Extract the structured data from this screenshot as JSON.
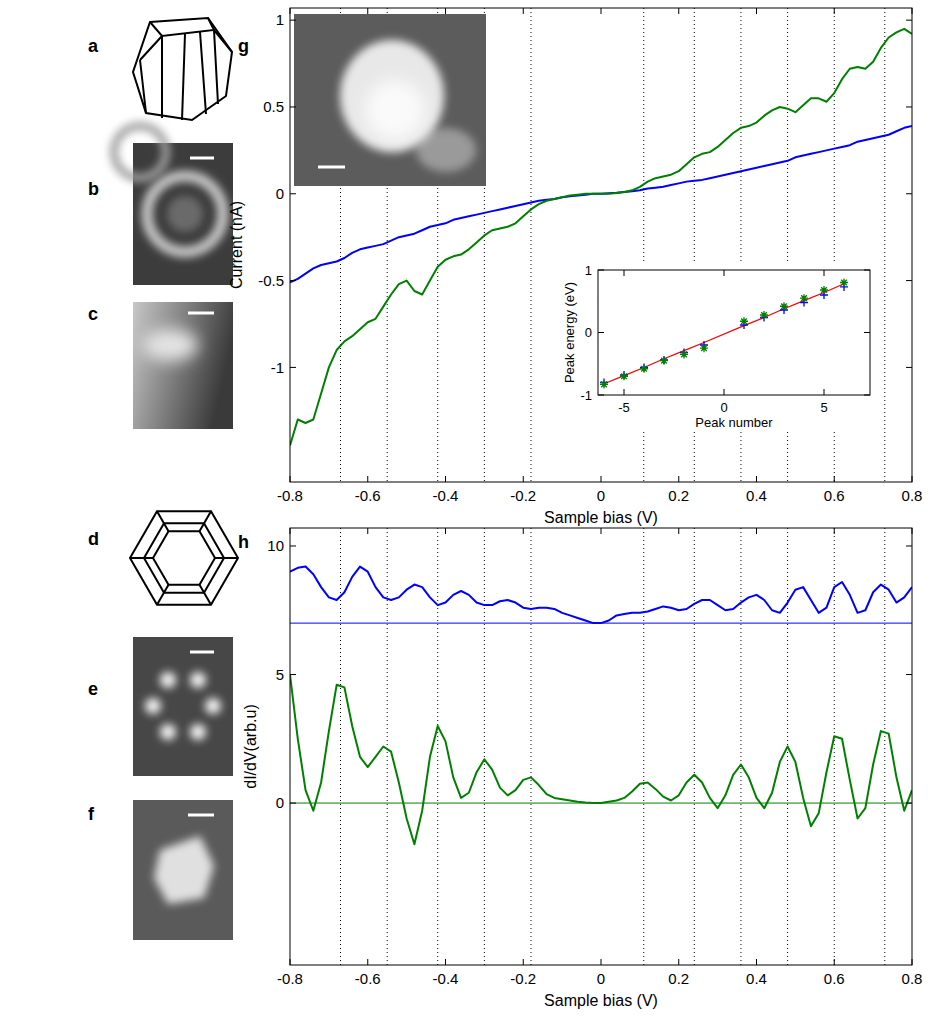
{
  "panel_labels": [
    "a",
    "b",
    "c",
    "d",
    "e",
    "f",
    "g",
    "h"
  ],
  "chart_data": [
    {
      "type": "line",
      "x_label": "Sample bias (V)",
      "y_label": "Current (nA)",
      "xlim": [
        -0.8,
        0.8
      ],
      "ylim": [
        -1.66,
        1.07
      ],
      "xticks": [
        -0.8,
        -0.6,
        -0.4,
        -0.2,
        0,
        0.2,
        0.4,
        0.6,
        0.8
      ],
      "yticks": [
        -1,
        -0.5,
        0,
        0.5,
        1
      ],
      "vlines": [
        -0.67,
        -0.55,
        -0.42,
        -0.3,
        -0.18,
        0.11,
        0.24,
        0.36,
        0.48,
        0.6,
        0.73
      ],
      "x": [
        -0.8,
        -0.78,
        -0.76,
        -0.74,
        -0.72,
        -0.7,
        -0.68,
        -0.66,
        -0.64,
        -0.62,
        -0.6,
        -0.58,
        -0.56,
        -0.54,
        -0.52,
        -0.5,
        -0.48,
        -0.46,
        -0.44,
        -0.42,
        -0.4,
        -0.38,
        -0.36,
        -0.34,
        -0.32,
        -0.3,
        -0.28,
        -0.26,
        -0.24,
        -0.22,
        -0.2,
        -0.18,
        -0.16,
        -0.14,
        -0.12,
        -0.1,
        -0.08,
        -0.06,
        -0.04,
        -0.02,
        0,
        0.02,
        0.04,
        0.06,
        0.08,
        0.1,
        0.12,
        0.14,
        0.16,
        0.18,
        0.2,
        0.22,
        0.24,
        0.26,
        0.28,
        0.3,
        0.32,
        0.34,
        0.36,
        0.38,
        0.4,
        0.42,
        0.44,
        0.46,
        0.48,
        0.5,
        0.52,
        0.54,
        0.56,
        0.58,
        0.6,
        0.62,
        0.64,
        0.66,
        0.68,
        0.7,
        0.72,
        0.74,
        0.76,
        0.78,
        0.8
      ],
      "series": [
        {
          "color": "#0000ff",
          "values": [
            -0.51,
            -0.49,
            -0.46,
            -0.43,
            -0.41,
            -0.4,
            -0.39,
            -0.37,
            -0.34,
            -0.32,
            -0.31,
            -0.3,
            -0.29,
            -0.27,
            -0.25,
            -0.24,
            -0.23,
            -0.21,
            -0.19,
            -0.18,
            -0.17,
            -0.15,
            -0.14,
            -0.13,
            -0.12,
            -0.11,
            -0.1,
            -0.09,
            -0.08,
            -0.07,
            -0.06,
            -0.05,
            -0.04,
            -0.035,
            -0.03,
            -0.02,
            -0.015,
            -0.01,
            -0.005,
            0,
            0,
            0.003,
            0.006,
            0.01,
            0.015,
            0.02,
            0.03,
            0.035,
            0.04,
            0.05,
            0.06,
            0.07,
            0.075,
            0.08,
            0.09,
            0.1,
            0.11,
            0.12,
            0.13,
            0.14,
            0.15,
            0.16,
            0.17,
            0.18,
            0.19,
            0.21,
            0.22,
            0.23,
            0.24,
            0.25,
            0.26,
            0.27,
            0.28,
            0.3,
            0.31,
            0.32,
            0.33,
            0.34,
            0.36,
            0.38,
            0.39
          ]
        },
        {
          "color": "#008000",
          "values": [
            -1.45,
            -1.3,
            -1.32,
            -1.3,
            -1.15,
            -1,
            -0.9,
            -0.85,
            -0.82,
            -0.78,
            -0.74,
            -0.72,
            -0.65,
            -0.58,
            -0.52,
            -0.5,
            -0.56,
            -0.58,
            -0.5,
            -0.42,
            -0.38,
            -0.36,
            -0.35,
            -0.32,
            -0.28,
            -0.24,
            -0.21,
            -0.2,
            -0.19,
            -0.17,
            -0.13,
            -0.09,
            -0.06,
            -0.04,
            -0.03,
            -0.02,
            -0.01,
            -0.005,
            0,
            0,
            0,
            0,
            0.005,
            0.01,
            0.02,
            0.04,
            0.07,
            0.09,
            0.1,
            0.11,
            0.13,
            0.17,
            0.21,
            0.23,
            0.24,
            0.27,
            0.31,
            0.35,
            0.38,
            0.39,
            0.41,
            0.45,
            0.48,
            0.5,
            0.49,
            0.47,
            0.51,
            0.55,
            0.55,
            0.53,
            0.58,
            0.66,
            0.72,
            0.73,
            0.72,
            0.76,
            0.84,
            0.9,
            0.93,
            0.95,
            0.92
          ]
        }
      ]
    },
    {
      "type": "line",
      "x_label": "Sample bias (V)",
      "y_label": "dI/dV(arb.u)",
      "xlim": [
        -0.8,
        0.8
      ],
      "ylim": [
        -6.3,
        10.7
      ],
      "xticks": [
        -0.8,
        -0.6,
        -0.4,
        -0.2,
        0,
        0.2,
        0.4,
        0.6,
        0.8
      ],
      "yticks": [
        0,
        5,
        10
      ],
      "vlines": [
        -0.67,
        -0.55,
        -0.42,
        -0.3,
        -0.18,
        0.11,
        0.24,
        0.36,
        0.48,
        0.6,
        0.73
      ],
      "x": [
        -0.8,
        -0.78,
        -0.76,
        -0.74,
        -0.72,
        -0.7,
        -0.68,
        -0.66,
        -0.64,
        -0.62,
        -0.6,
        -0.58,
        -0.56,
        -0.54,
        -0.52,
        -0.5,
        -0.48,
        -0.46,
        -0.44,
        -0.42,
        -0.4,
        -0.38,
        -0.36,
        -0.34,
        -0.32,
        -0.3,
        -0.28,
        -0.26,
        -0.24,
        -0.22,
        -0.2,
        -0.18,
        -0.16,
        -0.14,
        -0.12,
        -0.1,
        -0.08,
        -0.06,
        -0.04,
        -0.02,
        0,
        0.02,
        0.04,
        0.06,
        0.08,
        0.1,
        0.12,
        0.14,
        0.16,
        0.18,
        0.2,
        0.22,
        0.24,
        0.26,
        0.28,
        0.3,
        0.32,
        0.34,
        0.36,
        0.38,
        0.4,
        0.42,
        0.44,
        0.46,
        0.48,
        0.5,
        0.52,
        0.54,
        0.56,
        0.58,
        0.6,
        0.62,
        0.64,
        0.66,
        0.68,
        0.7,
        0.72,
        0.74,
        0.76,
        0.78,
        0.8
      ],
      "series": [
        {
          "color": "#0000ff",
          "baseline": 7,
          "values": [
            9,
            9.15,
            9.2,
            8.9,
            8.4,
            8,
            7.9,
            8.2,
            8.8,
            9.2,
            9,
            8.4,
            8,
            7.9,
            8,
            8.3,
            8.5,
            8.4,
            8,
            7.7,
            7.8,
            8.1,
            8.25,
            8.1,
            7.8,
            7.7,
            7.7,
            7.85,
            7.9,
            7.8,
            7.6,
            7.55,
            7.6,
            7.6,
            7.55,
            7.4,
            7.3,
            7.2,
            7.1,
            7,
            7,
            7.1,
            7.3,
            7.35,
            7.4,
            7.4,
            7.45,
            7.55,
            7.65,
            7.6,
            7.5,
            7.55,
            7.75,
            7.9,
            7.9,
            7.7,
            7.5,
            7.55,
            7.8,
            8,
            8.1,
            7.9,
            7.5,
            7.4,
            7.8,
            8.3,
            8.4,
            7.9,
            7.4,
            7.6,
            8.4,
            8.6,
            8.1,
            7.4,
            7.5,
            8.2,
            8.5,
            8.3,
            7.8,
            8,
            8.4
          ]
        },
        {
          "color": "#008000",
          "baseline": 0,
          "values": [
            5,
            2.5,
            0.5,
            -0.3,
            0.8,
            2.8,
            4.6,
            4.5,
            3,
            1.8,
            1.4,
            1.8,
            2.2,
            2,
            0.8,
            -0.6,
            -1.6,
            -0.3,
            1.8,
            3,
            2.4,
            1,
            0.2,
            0.4,
            1.2,
            1.7,
            1.3,
            0.6,
            0.3,
            0.5,
            0.9,
            1,
            0.7,
            0.35,
            0.2,
            0.15,
            0.1,
            0.05,
            0.02,
            0,
            0,
            0.05,
            0.1,
            0.2,
            0.45,
            0.75,
            0.8,
            0.55,
            0.25,
            0.1,
            0.3,
            0.8,
            1.1,
            0.8,
            0.2,
            -0.2,
            0.3,
            1.1,
            1.5,
            1,
            0.2,
            -0.2,
            0.4,
            1.6,
            2.2,
            1.6,
            0.2,
            -0.9,
            -0.4,
            1.2,
            2.6,
            2.5,
            0.9,
            -0.6,
            -0.2,
            1.5,
            2.8,
            2.7,
            1,
            -0.3,
            0.5
          ]
        }
      ]
    },
    {
      "type": "scatter",
      "x_label": "Peak number",
      "y_label": "Peak energy (eV)",
      "xlim": [
        -6.3,
        7.3
      ],
      "ylim": [
        -1,
        1
      ],
      "xticks": [
        -5,
        0,
        5
      ],
      "yticks": [
        -1,
        0,
        1
      ],
      "x": [
        -6,
        -5,
        -4,
        -3,
        -2,
        -1,
        1,
        2,
        3,
        4,
        5,
        6
      ],
      "series": [
        {
          "type": "line",
          "color": "#ff0000",
          "values": [
            -0.82,
            -0.69,
            -0.56,
            -0.42,
            -0.29,
            -0.16,
            0.11,
            0.24,
            0.38,
            0.51,
            0.64,
            0.78
          ]
        },
        {
          "color": "#0000ff",
          "marker": "plus",
          "values": [
            -0.8,
            -0.68,
            -0.56,
            -0.44,
            -0.32,
            -0.2,
            0.12,
            0.24,
            0.36,
            0.48,
            0.6,
            0.73
          ]
        },
        {
          "color": "#008000",
          "marker": "star",
          "values": [
            -0.83,
            -0.7,
            -0.58,
            -0.45,
            -0.35,
            -0.25,
            0.18,
            0.28,
            0.42,
            0.55,
            0.68,
            0.8
          ]
        }
      ]
    }
  ]
}
